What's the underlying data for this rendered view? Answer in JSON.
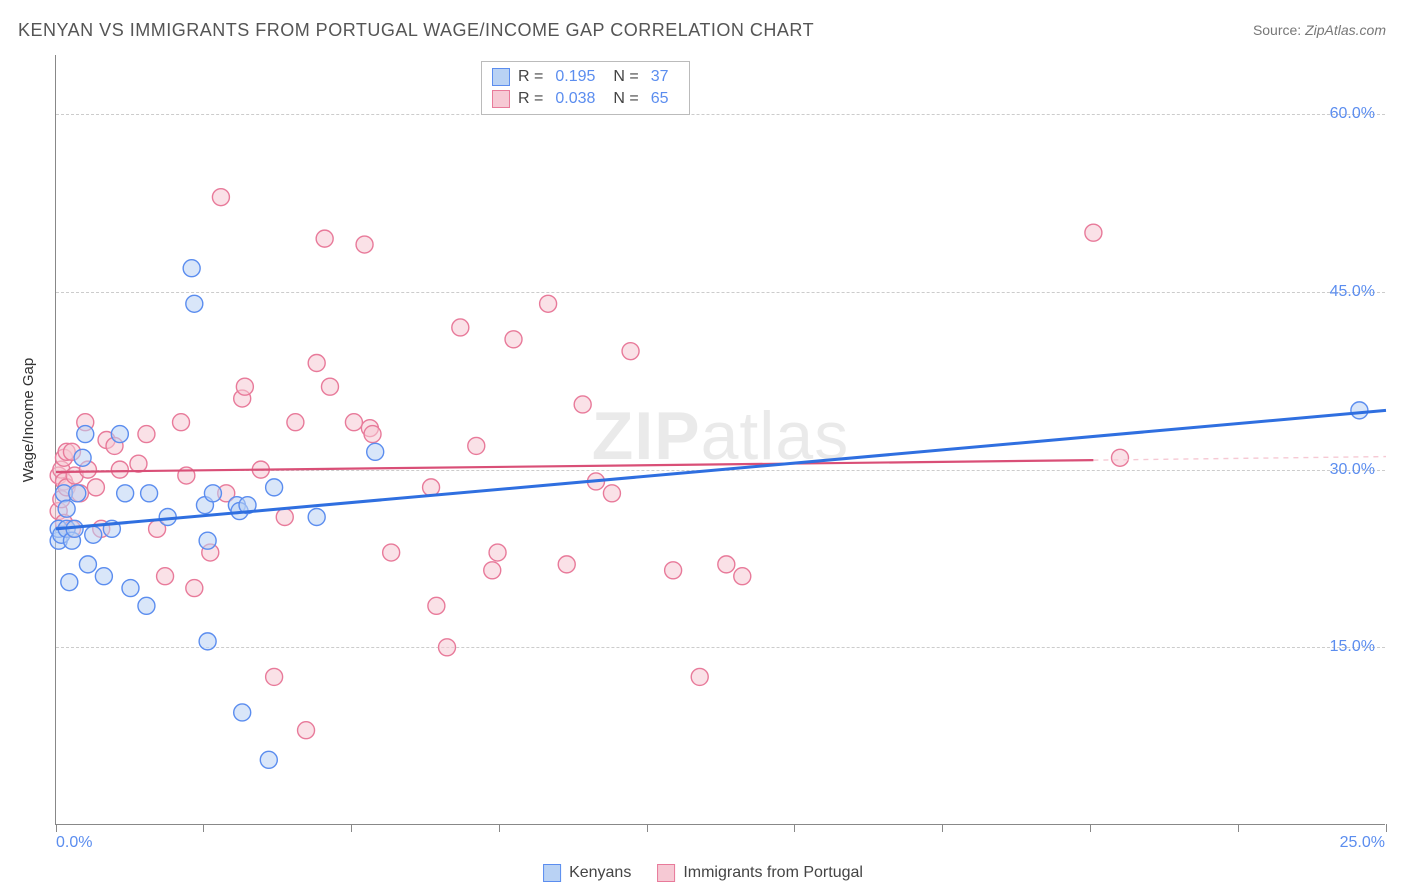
{
  "title": "KENYAN VS IMMIGRANTS FROM PORTUGAL WAGE/INCOME GAP CORRELATION CHART",
  "source_label": "Source:",
  "source_value": "ZipAtlas.com",
  "watermark_zip": "ZIP",
  "watermark_atlas": "atlas",
  "axis": {
    "y_title": "Wage/Income Gap",
    "x_min": 0.0,
    "x_max": 25.0,
    "x_label_min": "0.0%",
    "x_label_max": "25.0%",
    "y_min": 0.0,
    "y_max": 65.0,
    "y_grid": [
      15.0,
      30.0,
      45.0,
      60.0
    ],
    "y_grid_labels": [
      "15.0%",
      "30.0%",
      "45.0%",
      "60.0%"
    ],
    "x_ticks": [
      0,
      2.77,
      5.55,
      8.33,
      11.11,
      13.88,
      16.66,
      19.44,
      22.22,
      25.0
    ]
  },
  "colors": {
    "series1_fill": "#b9d2f4",
    "series1_stroke": "#5b8def",
    "series2_fill": "#f6c9d4",
    "series2_stroke": "#e87a9a",
    "trend1": "#2f6fe0",
    "trend2": "#d94f77",
    "trend2_dash": "#f6c9d4",
    "grid": "#cccccc",
    "axis": "#888888",
    "label": "#5b8def",
    "title": "#555555",
    "text": "#444444"
  },
  "marker": {
    "radius": 8.5,
    "stroke_width": 1.4,
    "fill_opacity": 0.55
  },
  "legend_stats": {
    "rows": [
      {
        "swatch_fill": "#b9d2f4",
        "swatch_stroke": "#5b8def",
        "r_label": "R =",
        "r_val": "0.195",
        "n_label": "N =",
        "n_val": "37"
      },
      {
        "swatch_fill": "#f6c9d4",
        "swatch_stroke": "#e87a9a",
        "r_label": "R =",
        "r_val": "0.038",
        "n_label": "N =",
        "n_val": "65"
      }
    ]
  },
  "bottom_legend": [
    {
      "swatch_fill": "#b9d2f4",
      "swatch_stroke": "#5b8def",
      "label": "Kenyans"
    },
    {
      "swatch_fill": "#f6c9d4",
      "swatch_stroke": "#e87a9a",
      "label": "Immigrants from Portugal"
    }
  ],
  "trend_lines": {
    "s1": {
      "x1": 0.0,
      "y1": 25.0,
      "x2": 25.0,
      "y2": 35.0,
      "width": 3
    },
    "s2_solid": {
      "x1": 0.0,
      "y1": 29.8,
      "x2": 19.5,
      "y2": 30.8,
      "width": 2.2
    },
    "s2_dash": {
      "x1": 19.5,
      "y1": 30.8,
      "x2": 25.0,
      "y2": 31.1,
      "width": 1.4
    }
  },
  "series1_points": [
    [
      0.05,
      24.0
    ],
    [
      0.05,
      25.0
    ],
    [
      0.1,
      24.5
    ],
    [
      0.15,
      28.0
    ],
    [
      0.2,
      25.0
    ],
    [
      0.2,
      26.7
    ],
    [
      0.25,
      20.5
    ],
    [
      0.3,
      24.0
    ],
    [
      0.35,
      25.0
    ],
    [
      0.4,
      28.0
    ],
    [
      0.5,
      31.0
    ],
    [
      0.55,
      33.0
    ],
    [
      0.6,
      22.0
    ],
    [
      0.7,
      24.5
    ],
    [
      0.9,
      21.0
    ],
    [
      1.05,
      25.0
    ],
    [
      1.2,
      33.0
    ],
    [
      1.3,
      28.0
    ],
    [
      1.4,
      20.0
    ],
    [
      1.7,
      18.5
    ],
    [
      1.75,
      28.0
    ],
    [
      2.1,
      26.0
    ],
    [
      2.55,
      47.0
    ],
    [
      2.6,
      44.0
    ],
    [
      2.8,
      27.0
    ],
    [
      2.85,
      15.5
    ],
    [
      2.85,
      24.0
    ],
    [
      2.95,
      28.0
    ],
    [
      3.4,
      27.0
    ],
    [
      3.45,
      26.5
    ],
    [
      3.5,
      9.5
    ],
    [
      3.6,
      27.0
    ],
    [
      4.0,
      5.5
    ],
    [
      4.1,
      28.5
    ],
    [
      4.9,
      26.0
    ],
    [
      6.0,
      31.5
    ],
    [
      24.5,
      35.0
    ]
  ],
  "series2_points": [
    [
      0.05,
      29.5
    ],
    [
      0.05,
      26.5
    ],
    [
      0.1,
      30.0
    ],
    [
      0.1,
      27.5
    ],
    [
      0.15,
      25.5
    ],
    [
      0.15,
      29.0
    ],
    [
      0.15,
      31.0
    ],
    [
      0.2,
      31.5
    ],
    [
      0.2,
      28.5
    ],
    [
      0.3,
      25.0
    ],
    [
      0.3,
      31.5
    ],
    [
      0.35,
      29.5
    ],
    [
      0.45,
      28.0
    ],
    [
      0.55,
      34.0
    ],
    [
      0.6,
      30.0
    ],
    [
      0.75,
      28.5
    ],
    [
      0.85,
      25.0
    ],
    [
      0.95,
      32.5
    ],
    [
      1.1,
      32.0
    ],
    [
      1.2,
      30.0
    ],
    [
      1.55,
      30.5
    ],
    [
      1.7,
      33.0
    ],
    [
      1.9,
      25.0
    ],
    [
      2.05,
      21.0
    ],
    [
      2.35,
      34.0
    ],
    [
      2.45,
      29.5
    ],
    [
      2.6,
      20.0
    ],
    [
      2.9,
      23.0
    ],
    [
      3.1,
      53.0
    ],
    [
      3.2,
      28.0
    ],
    [
      3.5,
      36.0
    ],
    [
      3.55,
      37.0
    ],
    [
      3.85,
      30.0
    ],
    [
      4.1,
      12.5
    ],
    [
      4.3,
      26.0
    ],
    [
      4.5,
      34.0
    ],
    [
      4.7,
      8.0
    ],
    [
      4.9,
      39.0
    ],
    [
      5.05,
      49.5
    ],
    [
      5.15,
      37.0
    ],
    [
      5.6,
      34.0
    ],
    [
      5.8,
      49.0
    ],
    [
      5.9,
      33.5
    ],
    [
      5.95,
      33.0
    ],
    [
      6.3,
      23.0
    ],
    [
      7.05,
      28.5
    ],
    [
      7.15,
      18.5
    ],
    [
      7.35,
      15.0
    ],
    [
      7.6,
      42.0
    ],
    [
      7.9,
      32.0
    ],
    [
      8.2,
      21.5
    ],
    [
      8.3,
      23.0
    ],
    [
      8.6,
      41.0
    ],
    [
      9.25,
      44.0
    ],
    [
      9.6,
      22.0
    ],
    [
      9.9,
      35.5
    ],
    [
      10.15,
      29.0
    ],
    [
      10.45,
      28.0
    ],
    [
      10.8,
      40.0
    ],
    [
      11.6,
      21.5
    ],
    [
      12.1,
      12.5
    ],
    [
      12.6,
      22.0
    ],
    [
      12.9,
      21.0
    ],
    [
      19.5,
      50.0
    ],
    [
      20.0,
      31.0
    ]
  ]
}
